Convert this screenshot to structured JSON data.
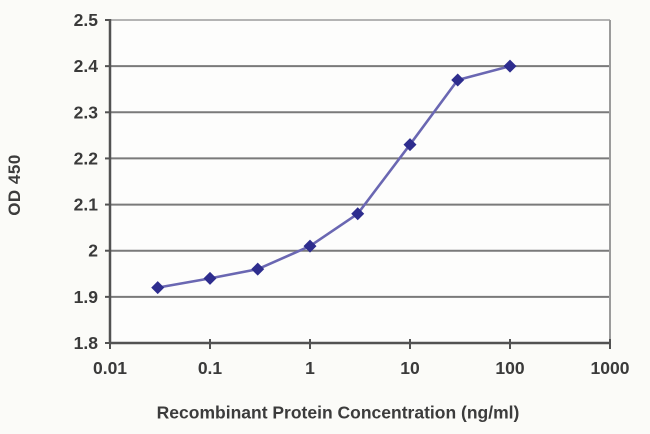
{
  "figure": {
    "background": "#fbfbf8",
    "plot_background": "#fdfdfc"
  },
  "chart_data": {
    "type": "line",
    "title": "",
    "xlabel": "Recombinant Protein Concentration (ng/ml)",
    "ylabel": "OD 450",
    "x_scale": "log",
    "x": [
      0.03,
      0.1,
      0.3,
      1,
      3,
      10,
      30,
      100
    ],
    "y": [
      1.92,
      1.94,
      1.96,
      2.01,
      2.08,
      2.23,
      2.37,
      2.4
    ],
    "xlim": [
      0.01,
      1000
    ],
    "ylim": [
      1.8,
      2.5
    ],
    "x_ticks": [
      0.01,
      0.1,
      1,
      10,
      100,
      1000
    ],
    "x_tick_labels": [
      "0.01",
      "0.1",
      "1",
      "10",
      "100",
      "1000"
    ],
    "y_ticks": [
      1.8,
      1.9,
      2.0,
      2.1,
      2.2,
      2.3,
      2.4,
      2.5
    ],
    "y_tick_labels": [
      "1.8",
      "1.9",
      "2",
      "2.1",
      "2.2",
      "2.3",
      "2.4",
      "2.5"
    ],
    "grid": true,
    "legend": false,
    "marker": "diamond",
    "line_color": "#6a67b2",
    "marker_color": "#2e2d8e",
    "gridline_color": "#7a7a7a",
    "axis_color": "#525252",
    "top_border_color": "#b4b4b4",
    "right_border_color": "#9b9b9b",
    "text_color": "#3a3a3a"
  }
}
